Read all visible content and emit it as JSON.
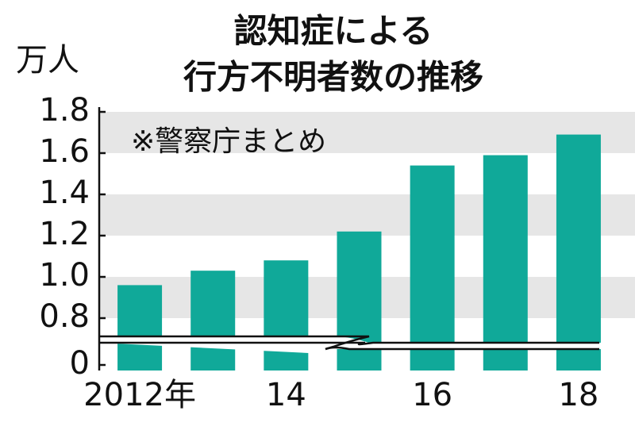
{
  "chart_data": {
    "type": "bar",
    "title": [
      "認知症による",
      "行方不明者数の推移"
    ],
    "unit": "万人",
    "note": "※警察庁まとめ",
    "categories": [
      "2012年",
      null,
      "14",
      null,
      "16",
      null,
      "18"
    ],
    "values": [
      0.96,
      1.03,
      1.08,
      1.22,
      1.54,
      1.59,
      1.69
    ],
    "color": "#10a999",
    "ylim": [
      0,
      1.8
    ],
    "y_break": [
      0,
      0.75
    ],
    "yticks": [
      0,
      0.8,
      {
        "value": 1,
        "label": "1.0"
      },
      1.2,
      1.4,
      1.6,
      1.8
    ],
    "grid": "bands"
  }
}
